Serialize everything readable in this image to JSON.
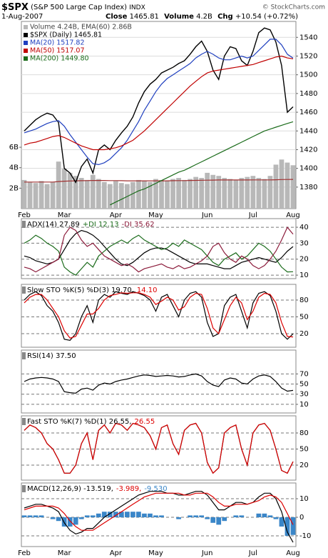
{
  "header": {
    "symbol": "$SPX",
    "name": "(S&P 500 Large Cap Index)",
    "exchange": "INDX",
    "date": "1-Aug-2007",
    "quote": [
      {
        "label": "Close",
        "value": "1465.81"
      },
      {
        "label": "Volume",
        "value": "4.2B"
      },
      {
        "label": "Chg",
        "value": "+10.54 (+0.72%)"
      }
    ],
    "source": "© StockCharts.com"
  },
  "chart_data": [
    {
      "type": "line",
      "legend": "stacked",
      "grid": true,
      "grid_style": "solid",
      "categories": [
        "Feb",
        null,
        null,
        null,
        null,
        null,
        null,
        "Mar",
        null,
        null,
        null,
        null,
        null,
        null,
        null,
        null,
        "Apr",
        null,
        null,
        null,
        null,
        null,
        null,
        "May",
        null,
        null,
        null,
        null,
        null,
        null,
        null,
        null,
        "Jun",
        null,
        null,
        null,
        null,
        null,
        null,
        null,
        "Jul",
        null,
        null,
        null,
        null,
        null,
        null,
        "Aug"
      ],
      "ylim": [
        1357,
        1557
      ],
      "yticks": [
        1380,
        1400,
        1420,
        1440,
        1460,
        1480,
        1500,
        1520,
        1540
      ],
      "y2lim": [
        0,
        18.3
      ],
      "y2ticks": [
        {
          "value": 2,
          "label": "2B"
        },
        {
          "value": 4,
          "label": "4B"
        },
        {
          "value": 6,
          "label": "6B"
        }
      ],
      "series": [
        {
          "name": "Volume 4.24B, EMA(60) 2.86B",
          "type": "bar",
          "axis": "y2",
          "color": "#b8b8b8",
          "values": [
            2.8,
            2.6,
            2.5,
            2.7,
            2.4,
            2.6,
            4.6,
            3.9,
            3.5,
            3.2,
            3.0,
            2.8,
            3.3,
            2.9,
            2.6,
            2.4,
            2.7,
            2.5,
            2.4,
            2.6,
            2.8,
            2.7,
            2.6,
            2.9,
            2.8,
            2.7,
            2.9,
            3.0,
            2.8,
            2.9,
            3.1,
            3.0,
            3.5,
            3.3,
            3.2,
            3.0,
            2.9,
            2.8,
            3.0,
            3.1,
            3.2,
            3.0,
            2.9,
            3.2,
            4.3,
            4.8,
            4.5,
            4.24
          ]
        },
        {
          "type": "line",
          "axis": "y2",
          "color": "#a03030",
          "values": [
            2.6,
            2.6,
            2.6,
            2.6,
            2.6,
            2.6,
            2.65,
            2.68,
            2.7,
            2.72,
            2.73,
            2.74,
            2.75,
            2.75,
            2.75,
            2.74,
            2.74,
            2.73,
            2.72,
            2.72,
            2.72,
            2.72,
            2.72,
            2.72,
            2.72,
            2.72,
            2.73,
            2.74,
            2.74,
            2.75,
            2.76,
            2.77,
            2.78,
            2.79,
            2.8,
            2.8,
            2.8,
            2.8,
            2.8,
            2.8,
            2.81,
            2.81,
            2.81,
            2.81,
            2.82,
            2.84,
            2.85,
            2.86
          ]
        },
        {
          "name": "$SPX (Daily) 1465.81",
          "type": "line",
          "color": "#000000",
          "values": [
            1440,
            1446,
            1452,
            1456,
            1459,
            1457,
            1449,
            1400,
            1395,
            1385,
            1402,
            1410,
            1395,
            1420,
            1425,
            1420,
            1430,
            1438,
            1445,
            1455,
            1470,
            1482,
            1490,
            1495,
            1502,
            1505,
            1508,
            1512,
            1515,
            1522,
            1530,
            1536,
            1525,
            1505,
            1495,
            1520,
            1530,
            1528,
            1515,
            1510,
            1525,
            1545,
            1550,
            1548,
            1535,
            1510,
            1460,
            1465.81
          ]
        },
        {
          "name": "MA(20) 1517.82",
          "type": "line",
          "color": "#1f3fbf",
          "values": [
            1438,
            1440,
            1442,
            1445,
            1448,
            1450,
            1451,
            1445,
            1436,
            1428,
            1420,
            1412,
            1405,
            1404,
            1406,
            1410,
            1416,
            1422,
            1430,
            1440,
            1450,
            1462,
            1472,
            1482,
            1490,
            1496,
            1500,
            1504,
            1508,
            1512,
            1518,
            1522,
            1525,
            1522,
            1518,
            1516,
            1516,
            1518,
            1520,
            1518,
            1520,
            1526,
            1532,
            1538,
            1538,
            1532,
            1522,
            1517.82
          ]
        },
        {
          "name": "MA(50) 1517.07",
          "type": "line",
          "color": "#c00000",
          "values": [
            1425,
            1427,
            1428,
            1430,
            1432,
            1434,
            1435,
            1433,
            1430,
            1427,
            1424,
            1422,
            1420,
            1420,
            1420,
            1421,
            1422,
            1424,
            1427,
            1430,
            1435,
            1440,
            1446,
            1452,
            1458,
            1464,
            1470,
            1476,
            1482,
            1488,
            1493,
            1498,
            1502,
            1504,
            1505,
            1506,
            1507,
            1508,
            1509,
            1510,
            1511,
            1513,
            1515,
            1517,
            1519,
            1520,
            1518,
            1517.07
          ]
        },
        {
          "name": "MA(200) 1449.80",
          "type": "line",
          "color": "#1a6b1a",
          "values": [
            null,
            null,
            null,
            null,
            null,
            null,
            null,
            null,
            null,
            null,
            null,
            null,
            null,
            null,
            null,
            1361,
            1364,
            1367,
            1370,
            1373,
            1376,
            1378,
            1381,
            1384,
            1387,
            1390,
            1393,
            1396,
            1398,
            1401,
            1404,
            1407,
            1410,
            1413,
            1416,
            1419,
            1422,
            1425,
            1428,
            1431,
            1434,
            1437,
            1440,
            1442,
            1444,
            1446,
            1448,
            1449.8
          ]
        }
      ]
    },
    {
      "type": "line",
      "legend": "inline",
      "grid": true,
      "grid_style": "dashed",
      "ylim": [
        7.8,
        45.4
      ],
      "yticks": [
        10,
        20,
        30,
        40
      ],
      "series": [
        {
          "name": "ADX(14) 27.89",
          "type": "line",
          "color": "#000000",
          "values": [
            22,
            21,
            19,
            18,
            17,
            18,
            20,
            26,
            32,
            36,
            38,
            37,
            35,
            32,
            28,
            24,
            20,
            17,
            16,
            18,
            21,
            24,
            26,
            27,
            27,
            26,
            24,
            22,
            20,
            18,
            17,
            17,
            17,
            16,
            15,
            14,
            14,
            16,
            18,
            19,
            20,
            21,
            20,
            19,
            18,
            21,
            25,
            27.89
          ]
        },
        {
          "name": "+DI 12.13",
          "type": "line",
          "color": "#1a6b1a",
          "values": [
            30,
            32,
            35,
            33,
            30,
            28,
            25,
            15,
            12,
            10,
            14,
            18,
            15,
            22,
            25,
            28,
            30,
            32,
            30,
            33,
            35,
            32,
            30,
            28,
            26,
            27,
            30,
            28,
            32,
            30,
            28,
            26,
            22,
            18,
            16,
            20,
            22,
            24,
            20,
            22,
            26,
            30,
            28,
            25,
            20,
            15,
            12,
            12.13
          ]
        },
        {
          "name": "-DI 35.62",
          "type": "line",
          "color": "#8b1a3a",
          "values": [
            15,
            14,
            12,
            14,
            16,
            18,
            20,
            35,
            40,
            38,
            32,
            28,
            30,
            26,
            22,
            20,
            18,
            16,
            17,
            15,
            12,
            14,
            15,
            16,
            17,
            15,
            14,
            16,
            14,
            15,
            17,
            19,
            22,
            28,
            30,
            24,
            20,
            18,
            22,
            20,
            16,
            14,
            16,
            20,
            25,
            32,
            40,
            35.62
          ]
        }
      ]
    },
    {
      "type": "line",
      "legend": "inline",
      "grid": true,
      "grid_style": "dashed",
      "ylim": [
        -4.3,
        108
      ],
      "yticks": [
        20,
        50,
        80
      ],
      "series": [
        {
          "name": "Slow STO %K(5) %D(3) 19.70,",
          "type": "line",
          "color": "#000000",
          "values": [
            80,
            90,
            95,
            88,
            70,
            60,
            40,
            10,
            8,
            20,
            50,
            70,
            40,
            80,
            90,
            85,
            95,
            92,
            90,
            95,
            92,
            88,
            80,
            60,
            85,
            90,
            70,
            50,
            80,
            92,
            95,
            85,
            40,
            15,
            20,
            70,
            85,
            90,
            60,
            30,
            75,
            92,
            95,
            88,
            60,
            20,
            10,
            19.7
          ]
        },
        {
          "name": "14.10",
          "type": "line",
          "color": "#dd0000",
          "values": [
            75,
            85,
            90,
            90,
            80,
            65,
            50,
            25,
            12,
            15,
            35,
            55,
            55,
            65,
            80,
            88,
            90,
            93,
            92,
            93,
            93,
            90,
            85,
            72,
            78,
            85,
            80,
            62,
            68,
            85,
            92,
            90,
            65,
            30,
            20,
            45,
            70,
            85,
            75,
            45,
            60,
            85,
            92,
            90,
            75,
            40,
            15,
            14.1
          ]
        }
      ]
    },
    {
      "type": "line",
      "legend": "inline",
      "grid": true,
      "grid_style": "dashed",
      "ylim": [
        -7,
        117
      ],
      "yticks": [
        10,
        30,
        50,
        70
      ],
      "series": [
        {
          "name": "RSI(14) 37.50",
          "type": "line",
          "color": "#000000",
          "values": [
            55,
            60,
            62,
            63,
            62,
            60,
            55,
            35,
            33,
            32,
            40,
            42,
            38,
            48,
            52,
            50,
            55,
            58,
            60,
            63,
            66,
            68,
            67,
            65,
            66,
            67,
            66,
            64,
            65,
            68,
            70,
            66,
            55,
            48,
            45,
            58,
            62,
            60,
            52,
            50,
            60,
            66,
            68,
            65,
            55,
            42,
            36,
            37.5
          ]
        }
      ]
    },
    {
      "type": "line",
      "legend": "inline",
      "grid": true,
      "grid_style": "dashed",
      "ylim": [
        -8,
        112
      ],
      "yticks": [
        20,
        50,
        80
      ],
      "series": [
        {
          "name": "Fast STO %K(7) %D(1) 26.55,",
          "type": "line",
          "color": "#000000",
          "values": [
            85,
            95,
            90,
            80,
            60,
            50,
            30,
            5,
            5,
            20,
            60,
            80,
            30,
            85,
            95,
            80,
            98,
            95,
            85,
            98,
            95,
            90,
            75,
            50,
            90,
            95,
            60,
            40,
            85,
            95,
            98,
            80,
            25,
            5,
            15,
            80,
            90,
            95,
            50,
            20,
            80,
            95,
            98,
            85,
            50,
            10,
            5,
            26.55
          ]
        },
        {
          "name": "26.55",
          "type": "line",
          "color": "#dd0000",
          "values": [
            85,
            95,
            90,
            80,
            60,
            50,
            30,
            5,
            5,
            20,
            60,
            80,
            30,
            85,
            95,
            80,
            98,
            95,
            85,
            98,
            95,
            90,
            75,
            50,
            90,
            95,
            60,
            40,
            85,
            95,
            98,
            80,
            25,
            5,
            15,
            80,
            90,
            95,
            50,
            20,
            80,
            95,
            98,
            85,
            50,
            10,
            5,
            26.55
          ]
        }
      ]
    },
    {
      "type": "line",
      "legend": "inline",
      "grid": true,
      "grid_style": "dashed",
      "categories": [
        "Feb",
        null,
        null,
        null,
        null,
        null,
        null,
        "Mar",
        null,
        null,
        null,
        null,
        null,
        null,
        null,
        null,
        "Apr",
        null,
        null,
        null,
        null,
        null,
        null,
        "May",
        null,
        null,
        null,
        null,
        null,
        null,
        null,
        null,
        "Jun",
        null,
        null,
        null,
        null,
        null,
        null,
        null,
        "Jul",
        null,
        null,
        null,
        null,
        null,
        null,
        "Aug"
      ],
      "ylim": [
        -15.8,
        18.5
      ],
      "yticks": [
        -10,
        0,
        10
      ],
      "series": [
        {
          "name": "MACD(12,26,9) -13.519,",
          "type": "line",
          "color": "#000000",
          "values": [
            5,
            6,
            7,
            7,
            6,
            5,
            3,
            -3,
            -7,
            -9,
            -8,
            -6,
            -6,
            -3,
            0,
            2,
            4,
            6,
            8,
            10,
            12,
            13,
            14,
            14,
            14,
            13,
            13,
            12,
            12,
            13,
            14,
            14,
            12,
            8,
            4,
            4,
            6,
            8,
            8,
            7,
            8,
            11,
            13,
            13,
            10,
            3,
            -8,
            -13.519
          ]
        },
        {
          "name": "-3.989,",
          "type": "line",
          "color": "#dd0000",
          "values": [
            4,
            5,
            6,
            6,
            6,
            6,
            5,
            2,
            -2,
            -5,
            -7,
            -7,
            -7,
            -5,
            -3,
            -1,
            1,
            3,
            5,
            7,
            9,
            11,
            12,
            13,
            13,
            13,
            13,
            13,
            12,
            12,
            13,
            13,
            13,
            11,
            8,
            6,
            6,
            7,
            7,
            7,
            8,
            9,
            11,
            12,
            11,
            8,
            2,
            -3.989
          ]
        },
        {
          "name": "-9.530",
          "type": "bar",
          "color": "#3a86c8",
          "values": [
            1,
            1,
            1,
            1,
            0,
            -1,
            -2,
            -5,
            -5,
            -4,
            -1,
            1,
            1,
            2,
            3,
            3,
            3,
            3,
            3,
            3,
            3,
            2,
            2,
            1,
            1,
            0,
            0,
            -1,
            0,
            1,
            1,
            1,
            -1,
            -3,
            -4,
            -2,
            0,
            1,
            1,
            0,
            0,
            2,
            2,
            1,
            -1,
            -5,
            -10,
            -9.53
          ]
        }
      ]
    }
  ]
}
